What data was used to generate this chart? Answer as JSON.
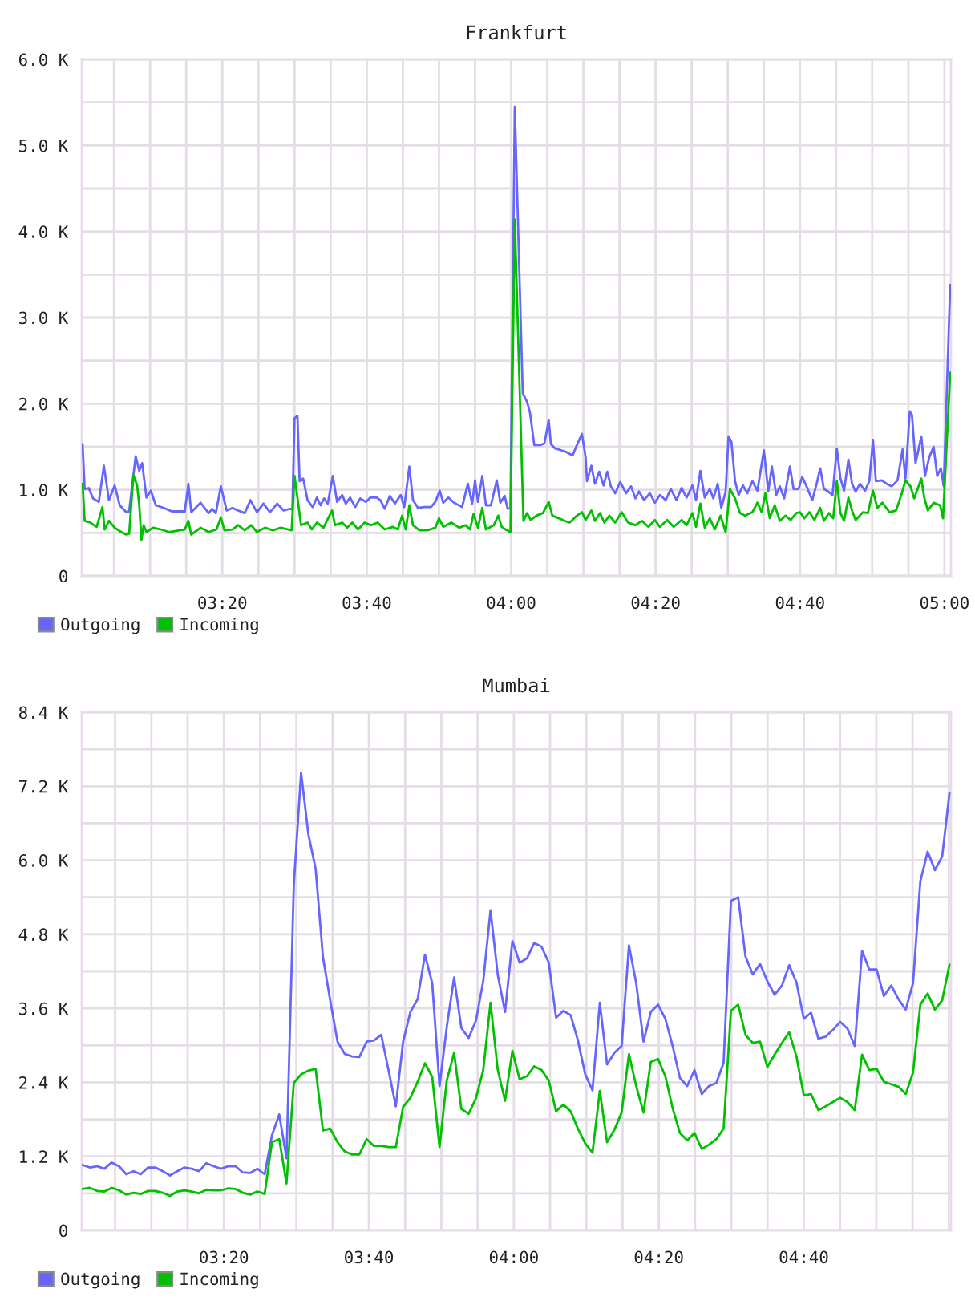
{
  "chart_data": [
    {
      "type": "line",
      "title": "Frankfurt",
      "xlim": [
        3.009,
        5.015
      ],
      "ylim": [
        0,
        6000
      ],
      "xticks": [
        {
          "value": 3.0833,
          "label": null
        },
        {
          "value": 3.1667,
          "label": null
        },
        {
          "value": 3.25,
          "label": null
        },
        {
          "value": 3.3333,
          "label": "03:20"
        },
        {
          "value": 3.4167,
          "label": null
        },
        {
          "value": 3.5,
          "label": null
        },
        {
          "value": 3.5833,
          "label": null
        },
        {
          "value": 3.6667,
          "label": "03:40"
        },
        {
          "value": 3.75,
          "label": null
        },
        {
          "value": 3.8333,
          "label": null
        },
        {
          "value": 3.9167,
          "label": null
        },
        {
          "value": 4,
          "label": "04:00"
        },
        {
          "value": 4.0833,
          "label": null
        },
        {
          "value": 4.1667,
          "label": null
        },
        {
          "value": 4.25,
          "label": null
        },
        {
          "value": 4.3333,
          "label": "04:20"
        },
        {
          "value": 4.4167,
          "label": null
        },
        {
          "value": 4.5,
          "label": null
        },
        {
          "value": 4.5833,
          "label": null
        },
        {
          "value": 4.6667,
          "label": "04:40"
        },
        {
          "value": 4.75,
          "label": null
        },
        {
          "value": 4.8333,
          "label": null
        },
        {
          "value": 4.9167,
          "label": null
        },
        {
          "value": 5,
          "label": "05:00"
        }
      ],
      "yticks": [
        0,
        {
          "value": 500,
          "label": null
        },
        {
          "value": 1000,
          "label": "1.0 K"
        },
        {
          "value": 1500,
          "label": null
        },
        {
          "value": 2000,
          "label": "2.0 K"
        },
        {
          "value": 2500,
          "label": null
        },
        {
          "value": 3000,
          "label": "3.0 K"
        },
        {
          "value": 3500,
          "label": null
        },
        {
          "value": 4000,
          "label": "4.0 K"
        },
        {
          "value": 4500,
          "label": null
        },
        {
          "value": 5000,
          "label": "5.0 K"
        },
        {
          "value": 5500,
          "label": null
        },
        {
          "value": 6000,
          "label": "6.0 K"
        }
      ],
      "grid": true,
      "legend": "bottom left",
      "series": [
        {
          "name": "Outgoing",
          "color": "#6666ff",
          "x": [
            3.0108,
            3.0157,
            3.025,
            3.035,
            3.0483,
            3.06,
            3.0717,
            3.085,
            3.0967,
            3.1117,
            3.1183,
            3.1333,
            3.1417,
            3.1483,
            3.1583,
            3.1683,
            3.18,
            3.1983,
            3.2167,
            3.2467,
            3.255,
            3.2617,
            3.2833,
            3.3017,
            3.31,
            3.3183,
            3.33,
            3.3433,
            3.3567,
            3.37,
            3.385,
            3.3983,
            3.4133,
            3.4283,
            3.4433,
            3.46,
            3.475,
            3.49,
            3.495,
            3.5,
            3.5067,
            3.5117,
            3.52,
            3.53,
            3.5417,
            3.5517,
            3.56,
            3.5683,
            3.5767,
            3.5883,
            3.5983,
            3.61,
            3.6183,
            3.6283,
            3.64,
            3.6517,
            3.665,
            3.675,
            3.69,
            3.6983,
            3.7083,
            3.72,
            3.7317,
            3.745,
            3.7533,
            3.765,
            3.7733,
            3.785,
            3.8,
            3.815,
            3.825,
            3.835,
            3.8433,
            3.855,
            3.8683,
            3.8867,
            3.9,
            3.91,
            3.9167,
            3.9233,
            3.9333,
            3.9417,
            3.9533,
            3.9667,
            3.975,
            3.985,
            3.9917,
            3.9983,
            4.0083,
            4.0267,
            4.0367,
            4.0433,
            4.0533,
            4.0683,
            4.0767,
            4.0867,
            4.0917,
            4.1017,
            4.115,
            4.1267,
            4.1417,
            4.1517,
            4.1633,
            4.1717,
            4.175,
            4.185,
            4.1933,
            4.2033,
            4.2133,
            4.2217,
            4.23,
            4.24,
            4.2517,
            4.265,
            4.2767,
            4.2867,
            4.295,
            4.3067,
            4.32,
            4.3317,
            4.3433,
            4.3567,
            4.3683,
            4.3817,
            4.3933,
            4.405,
            4.4183,
            4.4267,
            4.4367,
            4.4467,
            4.4583,
            4.4667,
            4.4767,
            4.485,
            4.495,
            4.5017,
            4.5083,
            4.5167,
            4.525,
            4.535,
            4.545,
            4.5567,
            4.5683,
            4.5833,
            4.5933,
            4.6017,
            4.6117,
            4.62,
            4.63,
            4.6433,
            4.6517,
            4.6633,
            4.6717,
            4.6817,
            4.695,
            4.705,
            4.7133,
            4.7217,
            4.7317,
            4.7417,
            4.7517,
            4.76,
            4.7683,
            4.7783,
            4.7867,
            4.795,
            4.805,
            4.8167,
            4.8267,
            4.835,
            4.8417,
            4.855,
            4.8667,
            4.8783,
            4.8917,
            4.9033,
            4.91,
            4.92,
            4.925,
            4.9333,
            4.9467,
            4.955,
            4.965,
            4.975,
            4.9833,
            4.9917,
            4.9983,
            5.0133
          ],
          "values": [
            1530,
            1010,
            1020,
            900,
            860,
            1280,
            880,
            1050,
            820,
            740,
            750,
            1390,
            1220,
            1310,
            910,
            990,
            820,
            790,
            750,
            750,
            1070,
            740,
            850,
            730,
            780,
            730,
            1040,
            760,
            790,
            760,
            730,
            880,
            740,
            840,
            740,
            840,
            760,
            780,
            770,
            1830,
            1860,
            1100,
            1130,
            880,
            800,
            910,
            820,
            900,
            840,
            1160,
            860,
            940,
            840,
            910,
            800,
            900,
            860,
            910,
            910,
            880,
            780,
            930,
            840,
            940,
            800,
            1270,
            880,
            790,
            800,
            800,
            860,
            990,
            850,
            910,
            850,
            800,
            1070,
            840,
            1110,
            860,
            1160,
            820,
            820,
            1110,
            850,
            930,
            780,
            790,
            5450,
            2120,
            2020,
            1900,
            1520,
            1520,
            1540,
            1810,
            1530,
            1480,
            1460,
            1440,
            1400,
            1520,
            1650,
            1380,
            1100,
            1280,
            1070,
            1210,
            1050,
            1210,
            1040,
            960,
            1090,
            960,
            1040,
            900,
            980,
            880,
            960,
            850,
            940,
            880,
            1010,
            880,
            1020,
            910,
            1050,
            880,
            1220,
            910,
            1010,
            900,
            1070,
            790,
            980,
            1620,
            1560,
            1100,
            940,
            1050,
            960,
            1100,
            990,
            1460,
            980,
            1270,
            940,
            1040,
            900,
            1270,
            1010,
            1010,
            1150,
            1040,
            880,
            1070,
            1250,
            1010,
            980,
            940,
            1480,
            1130,
            990,
            1350,
            1070,
            980,
            1070,
            990,
            1100,
            1580,
            1100,
            1110,
            1070,
            1040,
            1110,
            1470,
            1130,
            1910,
            1870,
            1310,
            1620,
            1160,
            1380,
            1500,
            1160,
            1250,
            1040,
            3380
          ]
        },
        {
          "name": "Incoming",
          "color": "#00c000",
          "x": [
            3.0108,
            3.0157,
            3.0283,
            3.0433,
            3.0567,
            3.0617,
            3.0717,
            3.085,
            3.1,
            3.1117,
            3.1183,
            3.1283,
            3.1367,
            3.1417,
            3.1467,
            3.1517,
            3.1583,
            3.1733,
            3.1917,
            3.21,
            3.235,
            3.2467,
            3.255,
            3.2617,
            3.2833,
            3.3017,
            3.32,
            3.33,
            3.3383,
            3.3567,
            3.37,
            3.385,
            3.4,
            3.4133,
            3.4317,
            3.45,
            3.4683,
            3.4933,
            3.5,
            3.5067,
            3.515,
            3.53,
            3.54,
            3.5517,
            3.5667,
            3.5867,
            3.5933,
            3.61,
            3.6217,
            3.6333,
            3.6467,
            3.6617,
            3.6767,
            3.6917,
            3.7083,
            3.7267,
            3.7383,
            3.7483,
            3.7567,
            3.765,
            3.7733,
            3.7883,
            3.8067,
            3.825,
            3.8333,
            3.8433,
            3.8617,
            3.88,
            3.895,
            3.905,
            3.9133,
            3.9233,
            3.9333,
            3.9417,
            3.96,
            3.97,
            3.9783,
            3.99,
            3.9983,
            4.0083,
            4.0283,
            4.0367,
            4.045,
            4.0583,
            4.0733,
            4.0867,
            4.095,
            4.11,
            4.1233,
            4.135,
            4.1517,
            4.1633,
            4.1717,
            4.185,
            4.1933,
            4.205,
            4.215,
            4.2267,
            4.24,
            4.255,
            4.27,
            4.2867,
            4.3017,
            4.3167,
            4.3317,
            4.3433,
            4.36,
            4.375,
            4.3933,
            4.405,
            4.4183,
            4.4267,
            4.4367,
            4.4467,
            4.4583,
            4.47,
            4.4833,
            4.495,
            4.505,
            4.5167,
            4.5283,
            4.54,
            4.5567,
            4.5683,
            4.5783,
            4.5867,
            4.5967,
            4.6083,
            4.62,
            4.6333,
            4.645,
            4.6583,
            4.6667,
            4.6767,
            4.6883,
            4.7,
            4.7133,
            4.7217,
            4.7333,
            4.7433,
            4.7517,
            4.76,
            4.7683,
            4.7783,
            4.7867,
            4.795,
            4.8117,
            4.8233,
            4.835,
            4.845,
            4.8567,
            4.8733,
            4.8883,
            4.9017,
            4.91,
            4.9217,
            4.93,
            4.9467,
            4.9533,
            4.9617,
            4.975,
            4.99,
            4.9967,
            5.0133
          ],
          "values": [
            1070,
            640,
            620,
            570,
            800,
            540,
            640,
            560,
            510,
            480,
            490,
            1170,
            1050,
            820,
            420,
            590,
            510,
            560,
            540,
            510,
            530,
            540,
            640,
            480,
            560,
            510,
            540,
            680,
            530,
            540,
            590,
            530,
            590,
            510,
            560,
            530,
            560,
            530,
            1160,
            910,
            590,
            620,
            540,
            620,
            560,
            760,
            590,
            620,
            560,
            620,
            540,
            620,
            590,
            620,
            540,
            570,
            540,
            700,
            540,
            820,
            590,
            530,
            530,
            560,
            670,
            570,
            620,
            560,
            590,
            540,
            720,
            560,
            790,
            540,
            590,
            700,
            570,
            530,
            510,
            4140,
            640,
            730,
            650,
            700,
            730,
            860,
            700,
            670,
            640,
            620,
            700,
            740,
            650,
            760,
            640,
            730,
            620,
            700,
            620,
            740,
            620,
            590,
            640,
            570,
            650,
            570,
            650,
            570,
            650,
            590,
            730,
            570,
            840,
            560,
            670,
            540,
            700,
            510,
            1010,
            900,
            730,
            700,
            740,
            850,
            740,
            960,
            670,
            820,
            640,
            700,
            650,
            730,
            740,
            670,
            740,
            650,
            790,
            640,
            730,
            670,
            1100,
            730,
            640,
            910,
            760,
            650,
            740,
            730,
            990,
            790,
            850,
            740,
            760,
            960,
            1110,
            1040,
            900,
            1130,
            910,
            760,
            850,
            820,
            670,
            2360
          ]
        }
      ]
    },
    {
      "type": "line",
      "title": "Mumbai",
      "xlim": [
        3.0066,
        5.005
      ],
      "ylim": [
        0,
        8400
      ],
      "xticks": [
        {
          "value": 3.0833,
          "label": null
        },
        {
          "value": 3.1667,
          "label": null
        },
        {
          "value": 3.25,
          "label": null
        },
        {
          "value": 3.3333,
          "label": "03:20"
        },
        {
          "value": 3.4167,
          "label": null
        },
        {
          "value": 3.5,
          "label": null
        },
        {
          "value": 3.5833,
          "label": null
        },
        {
          "value": 3.6667,
          "label": "03:40"
        },
        {
          "value": 3.75,
          "label": null
        },
        {
          "value": 3.8333,
          "label": null
        },
        {
          "value": 3.9167,
          "label": null
        },
        {
          "value": 4,
          "label": "04:00"
        },
        {
          "value": 4.0833,
          "label": null
        },
        {
          "value": 4.1667,
          "label": null
        },
        {
          "value": 4.25,
          "label": null
        },
        {
          "value": 4.3333,
          "label": "04:20"
        },
        {
          "value": 4.4167,
          "label": null
        },
        {
          "value": 4.5,
          "label": null
        },
        {
          "value": 4.5833,
          "label": null
        },
        {
          "value": 4.6667,
          "label": "04:40"
        },
        {
          "value": 4.75,
          "label": null
        },
        {
          "value": 4.8333,
          "label": null
        },
        {
          "value": 4.9167,
          "label": null
        },
        {
          "value": 5,
          "label": null
        }
      ],
      "yticks": [
        0,
        {
          "value": 600,
          "label": null
        },
        {
          "value": 1200,
          "label": "1.2 K"
        },
        {
          "value": 1800,
          "label": null
        },
        {
          "value": 2400,
          "label": "2.4 K"
        },
        {
          "value": 3000,
          "label": null
        },
        {
          "value": 3600,
          "label": "3.6 K"
        },
        {
          "value": 4200,
          "label": null
        },
        {
          "value": 4800,
          "label": "4.8 K"
        },
        {
          "value": 5400,
          "label": null
        },
        {
          "value": 6000,
          "label": "6.0 K"
        },
        {
          "value": 6600,
          "label": null
        },
        {
          "value": 7200,
          "label": "7.2 K"
        },
        {
          "value": 7800,
          "label": null
        },
        {
          "value": 8400,
          "label": "8.4 K"
        }
      ],
      "grid": true,
      "legend": "bottom left",
      "x": [
        3.0083,
        3.0251,
        3.0418,
        3.0586,
        3.0753,
        3.0921,
        3.1088,
        3.1256,
        3.1423,
        3.1591,
        3.1758,
        3.1926,
        3.2093,
        3.2261,
        3.2428,
        3.2596,
        3.2763,
        3.2931,
        3.3098,
        3.3266,
        3.3433,
        3.3601,
        3.3768,
        3.3936,
        3.4103,
        3.4271,
        3.4438,
        3.4606,
        3.4773,
        3.4941,
        3.5108,
        3.5276,
        3.5443,
        3.5611,
        3.5778,
        3.5946,
        3.6113,
        3.6281,
        3.6448,
        3.6616,
        3.6783,
        3.6951,
        3.7118,
        3.7286,
        3.7453,
        3.7621,
        3.7788,
        3.7956,
        3.8123,
        3.8291,
        3.8458,
        3.8626,
        3.8793,
        3.8961,
        3.9128,
        3.9296,
        3.9463,
        3.9631,
        3.9798,
        3.9966,
        4.0133,
        4.0301,
        4.0468,
        4.0636,
        4.0803,
        4.0971,
        4.1138,
        4.1306,
        4.1473,
        4.1641,
        4.1808,
        4.1976,
        4.2143,
        4.2311,
        4.2478,
        4.2646,
        4.2813,
        4.2981,
        4.3148,
        4.3316,
        4.3483,
        4.3651,
        4.3818,
        4.3986,
        4.4153,
        4.4321,
        4.4488,
        4.4656,
        4.4823,
        4.4991,
        4.5158,
        4.5326,
        4.5493,
        4.5661,
        4.5828,
        4.5996,
        4.6163,
        4.6331,
        4.6498,
        4.6666,
        4.6833,
        4.7001,
        4.7168,
        4.7336,
        4.7503,
        4.7671,
        4.7838,
        4.8006,
        4.8173,
        4.8341,
        4.8508,
        4.8676,
        4.8843,
        4.9011,
        4.9178,
        4.9346,
        4.9513,
        4.9681,
        4.9848,
        5.0016
      ],
      "series": [
        {
          "name": "Outgoing",
          "color": "#6666ff",
          "values": [
            1060,
            1020,
            1040,
            1000,
            1100,
            1040,
            910,
            960,
            910,
            1020,
            1020,
            960,
            890,
            960,
            1020,
            1000,
            960,
            1090,
            1040,
            1000,
            1040,
            1040,
            940,
            930,
            1000,
            910,
            1540,
            1880,
            1170,
            5600,
            7420,
            6420,
            5860,
            4430,
            3730,
            3060,
            2860,
            2820,
            2810,
            3060,
            3080,
            3170,
            2600,
            2010,
            3060,
            3540,
            3750,
            4470,
            4010,
            2340,
            3300,
            4100,
            3280,
            3120,
            3400,
            4040,
            5190,
            4140,
            3540,
            4690,
            4340,
            4410,
            4660,
            4600,
            4340,
            3450,
            3560,
            3490,
            3080,
            2530,
            2270,
            3690,
            2690,
            2880,
            2990,
            4620,
            4010,
            3060,
            3540,
            3660,
            3430,
            2990,
            2470,
            2340,
            2600,
            2210,
            2340,
            2390,
            2720,
            5340,
            5400,
            4440,
            4150,
            4320,
            4040,
            3820,
            3970,
            4300,
            4020,
            3430,
            3530,
            3110,
            3140,
            3250,
            3380,
            3270,
            2990,
            4530,
            4230,
            4230,
            3800,
            3970,
            3750,
            3580,
            4010,
            5660,
            6140,
            5840,
            6060,
            7090
          ]
        },
        {
          "name": "Incoming",
          "color": "#00c000",
          "values": [
            670,
            690,
            640,
            630,
            690,
            650,
            580,
            610,
            590,
            640,
            640,
            610,
            560,
            630,
            650,
            630,
            600,
            660,
            650,
            650,
            680,
            670,
            610,
            580,
            630,
            590,
            1430,
            1480,
            760,
            2390,
            2530,
            2590,
            2620,
            1620,
            1650,
            1430,
            1280,
            1230,
            1230,
            1480,
            1370,
            1370,
            1350,
            1350,
            2000,
            2150,
            2410,
            2710,
            2490,
            1350,
            2430,
            2880,
            1970,
            1890,
            2140,
            2600,
            3690,
            2600,
            2100,
            2910,
            2450,
            2500,
            2660,
            2600,
            2430,
            1930,
            2040,
            1930,
            1650,
            1410,
            1260,
            2260,
            1430,
            1630,
            1910,
            2860,
            2340,
            1910,
            2730,
            2780,
            2500,
            1980,
            1580,
            1460,
            1580,
            1320,
            1390,
            1480,
            1650,
            3560,
            3660,
            3170,
            3040,
            3060,
            2650,
            2850,
            3040,
            3210,
            2820,
            2190,
            2210,
            1950,
            2010,
            2080,
            2150,
            2080,
            1950,
            2850,
            2600,
            2620,
            2410,
            2370,
            2330,
            2210,
            2560,
            3660,
            3840,
            3580,
            3730,
            4310
          ]
        }
      ]
    }
  ]
}
